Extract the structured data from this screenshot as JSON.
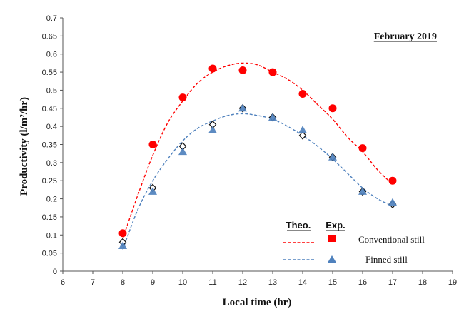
{
  "chart_data": {
    "type": "scatter",
    "title": "February 2019",
    "xlabel": "Local time (hr)",
    "ylabel": "Productivity (l/m²/hr)",
    "xlim": [
      6,
      19
    ],
    "ylim": [
      0,
      0.7
    ],
    "x_ticks": [
      "6",
      "7",
      "8",
      "9",
      "10",
      "11",
      "12",
      "13",
      "14",
      "15",
      "16",
      "17",
      "18",
      "19"
    ],
    "y_ticks": [
      "0",
      "0.05",
      "0.1",
      "0.15",
      "0.2",
      "0.25",
      "0.3",
      "0.35",
      "0.4",
      "0.45",
      "0.5",
      "0.55",
      "0.6",
      "0.65",
      "0.7"
    ],
    "grid": false,
    "legend_placement": "bottom-right",
    "legend_headers": {
      "theo": "Theo.",
      "exp": "Exp."
    },
    "series": [
      {
        "name": "Conventional still",
        "color": "#ff0000",
        "marker": "circle",
        "x": [
          8,
          9,
          10,
          11,
          12,
          13,
          14,
          15,
          16,
          17
        ],
        "experimental": [
          0.105,
          0.35,
          0.48,
          0.56,
          0.555,
          0.55,
          0.49,
          0.45,
          0.34,
          0.25
        ],
        "theoretical_curve": {
          "x": [
            8,
            8.5,
            9,
            9.5,
            10,
            10.5,
            11,
            11.5,
            12,
            12.5,
            13,
            13.5,
            14,
            14.5,
            15,
            15.5,
            16,
            16.5,
            17
          ],
          "y": [
            0.09,
            0.21,
            0.32,
            0.41,
            0.47,
            0.52,
            0.55,
            0.568,
            0.575,
            0.57,
            0.55,
            0.53,
            0.5,
            0.46,
            0.42,
            0.37,
            0.33,
            0.28,
            0.24
          ]
        }
      },
      {
        "name": "Finned still",
        "color": "#4f81bd",
        "marker": "triangle",
        "x": [
          8,
          9,
          10,
          11,
          12,
          13,
          14,
          15,
          16,
          17
        ],
        "experimental": [
          0.07,
          0.22,
          0.33,
          0.39,
          0.45,
          0.425,
          0.39,
          0.315,
          0.22,
          0.19
        ],
        "theoretical_points": [
          0.08,
          0.23,
          0.345,
          0.405,
          0.45,
          0.425,
          0.375,
          0.315,
          0.22,
          0.185
        ],
        "theoretical_curve": {
          "x": [
            8,
            8.5,
            9,
            9.5,
            10,
            10.5,
            11,
            11.5,
            12,
            12.5,
            13,
            13.5,
            14,
            14.5,
            15,
            15.5,
            16,
            16.5,
            17
          ],
          "y": [
            0.06,
            0.17,
            0.25,
            0.31,
            0.36,
            0.395,
            0.415,
            0.43,
            0.435,
            0.43,
            0.42,
            0.4,
            0.375,
            0.345,
            0.31,
            0.27,
            0.23,
            0.2,
            0.18
          ]
        }
      }
    ]
  }
}
